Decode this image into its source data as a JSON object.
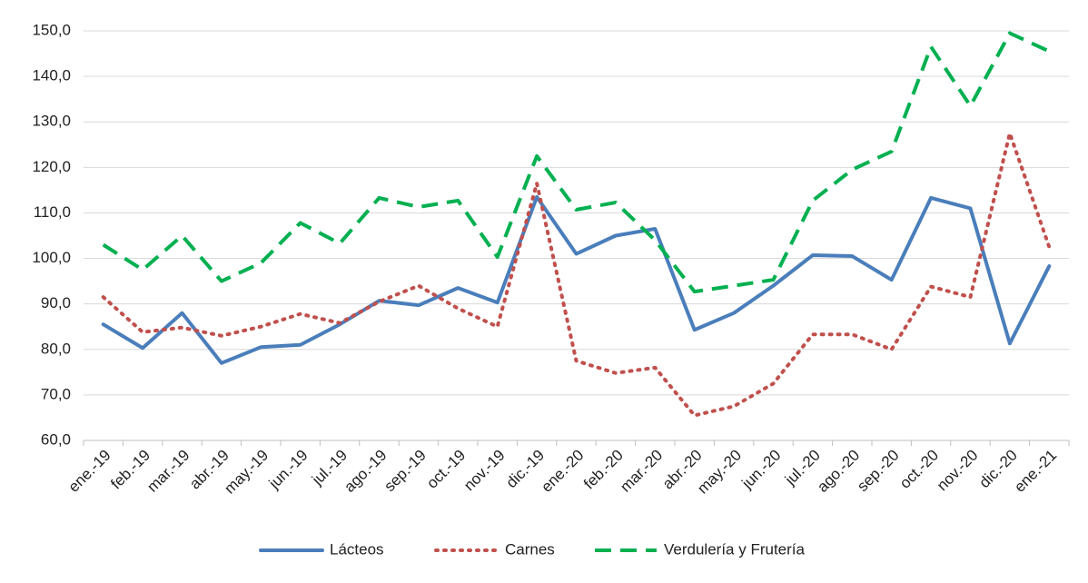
{
  "chart_data": {
    "type": "line",
    "categories": [
      "ene.-19",
      "feb.-19",
      "mar.-19",
      "abr.-19",
      "may.-19",
      "jun.-19",
      "jul.-19",
      "ago.-19",
      "sep.-19",
      "oct.-19",
      "nov.-19",
      "dic.-19",
      "ene.-20",
      "feb.-20",
      "mar.-20",
      "abr.-20",
      "may.-20",
      "jun.-20",
      "jul.-20",
      "ago.-20",
      "sep.-20",
      "oct.-20",
      "nov.-20",
      "dic.-20",
      "ene.-21"
    ],
    "series": [
      {
        "name": "Lácteos",
        "color": "#4a7ebb",
        "values": [
          85.5,
          80.3,
          88,
          77,
          80.5,
          81,
          85.5,
          90.7,
          89.7,
          93.5,
          90.3,
          113.5,
          101,
          105,
          106.5,
          84.3,
          88,
          94,
          100.7,
          100.5,
          95.3,
          113.3,
          111,
          81.3,
          98.3
        ]
      },
      {
        "name": "Carnes",
        "color": "#c0504d",
        "values": [
          91.5,
          83.8,
          84.8,
          83,
          85,
          87.8,
          85.8,
          90.5,
          94,
          89,
          85,
          116.5,
          77.5,
          74.8,
          76,
          65.5,
          67.5,
          72.5,
          83.3,
          83.3,
          80,
          93.8,
          91.5,
          127.5,
          102.5
        ]
      },
      {
        "name": "Verdulería y Frutería",
        "color": "#00b050",
        "values": [
          103,
          97.5,
          105,
          95,
          99,
          107.8,
          103.3,
          113.3,
          111.3,
          112.7,
          100.3,
          122.5,
          110.7,
          112.3,
          104,
          92.7,
          94,
          95.3,
          112.7,
          119.5,
          123.5,
          146.5,
          133.5,
          149.5,
          145.5
        ]
      }
    ],
    "ylim": [
      60,
      150
    ],
    "yticks": [
      {
        "value": 60,
        "label": "60,0"
      },
      {
        "value": 70,
        "label": "70,0"
      },
      {
        "value": 80,
        "label": "80,0"
      },
      {
        "value": 90,
        "label": "90,0"
      },
      {
        "value": 100,
        "label": "100,0"
      },
      {
        "value": 110,
        "label": "110,0"
      },
      {
        "value": 120,
        "label": "120,0"
      },
      {
        "value": 130,
        "label": "130,0"
      },
      {
        "value": 140,
        "label": "140,0"
      },
      {
        "value": 150,
        "label": "150,0"
      }
    ],
    "grid": true,
    "legend": "bottom"
  }
}
